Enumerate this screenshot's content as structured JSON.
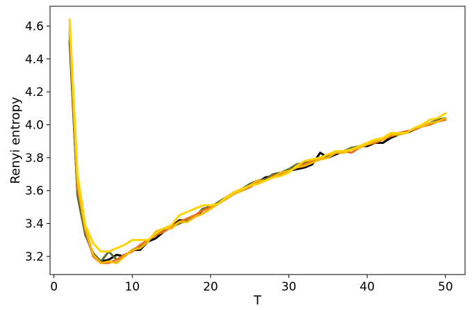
{
  "chart_data": {
    "type": "line",
    "xlabel": "T",
    "ylabel": "Renyi entropy",
    "xlim": [
      -0.5,
      52.5
    ],
    "ylim": [
      3.09,
      4.72
    ],
    "grid": false,
    "x_ticks": [
      0,
      10,
      20,
      30,
      40,
      50
    ],
    "x_tick_labels": [
      "0",
      "10",
      "20",
      "30",
      "40",
      "50"
    ],
    "y_ticks": [
      3.2,
      3.4,
      3.6,
      3.8,
      4.0,
      4.2,
      4.4,
      4.6
    ],
    "y_tick_labels": [
      "3.2",
      "3.4",
      "3.6",
      "3.8",
      "4.0",
      "4.2",
      "4.4",
      "4.6"
    ],
    "series": [
      {
        "color": "#000000",
        "x": [
          2,
          3,
          4,
          5,
          6,
          7,
          8,
          9,
          10,
          11,
          12,
          13,
          14,
          15,
          16,
          17,
          18,
          19,
          20,
          21,
          22,
          23,
          24,
          25,
          26,
          27,
          28,
          29,
          30,
          31,
          32,
          33,
          34,
          35,
          36,
          37,
          38,
          39,
          40,
          41,
          42,
          43,
          44,
          45,
          46,
          47,
          48,
          49,
          50
        ],
        "y": [
          4.51,
          3.58,
          3.34,
          3.21,
          3.17,
          3.18,
          3.21,
          3.2,
          3.24,
          3.24,
          3.29,
          3.31,
          3.35,
          3.38,
          3.42,
          3.42,
          3.44,
          3.48,
          3.51,
          3.52,
          3.56,
          3.59,
          3.6,
          3.63,
          3.65,
          3.68,
          3.69,
          3.7,
          3.72,
          3.73,
          3.74,
          3.76,
          3.83,
          3.8,
          3.82,
          3.84,
          3.85,
          3.87,
          3.87,
          3.89,
          3.89,
          3.92,
          3.94,
          3.95,
          3.97,
          3.99,
          4.01,
          4.03,
          4.04
        ]
      },
      {
        "color": "#556B2F",
        "x": [
          2,
          3,
          4,
          5,
          6,
          7,
          8,
          9,
          10,
          11,
          12,
          13,
          14,
          15,
          16,
          17,
          18,
          19,
          20,
          21,
          22,
          23,
          24,
          25,
          26,
          27,
          28,
          29,
          30,
          31,
          32,
          33,
          34,
          35,
          36,
          37,
          38,
          39,
          40,
          41,
          42,
          43,
          44,
          45,
          46,
          47,
          48,
          49,
          50
        ],
        "y": [
          4.55,
          3.57,
          3.33,
          3.22,
          3.17,
          3.23,
          3.18,
          3.2,
          3.24,
          3.26,
          3.3,
          3.33,
          3.36,
          3.38,
          3.4,
          3.42,
          3.44,
          3.49,
          3.5,
          3.53,
          3.56,
          3.59,
          3.61,
          3.64,
          3.66,
          3.67,
          3.7,
          3.71,
          3.73,
          3.76,
          3.77,
          3.78,
          3.8,
          3.81,
          3.83,
          3.84,
          3.86,
          3.87,
          3.88,
          3.9,
          3.91,
          3.93,
          3.94,
          3.96,
          3.97,
          3.99,
          4.01,
          4.03,
          4.04
        ]
      },
      {
        "color": "#E8711C",
        "x": [
          2,
          3,
          4,
          5,
          6,
          7,
          8,
          9,
          10,
          11,
          12,
          13,
          14,
          15,
          16,
          17,
          18,
          19,
          20,
          21,
          22,
          23,
          24,
          25,
          26,
          27,
          28,
          29,
          30,
          31,
          32,
          33,
          34,
          35,
          36,
          37,
          38,
          39,
          40,
          41,
          42,
          43,
          44,
          45,
          46,
          47,
          48,
          49,
          50
        ],
        "y": [
          4.58,
          3.62,
          3.36,
          3.2,
          3.16,
          3.16,
          3.18,
          3.21,
          3.23,
          3.27,
          3.3,
          3.33,
          3.35,
          3.38,
          3.41,
          3.43,
          3.45,
          3.48,
          3.5,
          3.52,
          3.55,
          3.58,
          3.6,
          3.62,
          3.65,
          3.66,
          3.69,
          3.7,
          3.72,
          3.74,
          3.76,
          3.78,
          3.8,
          3.82,
          3.83,
          3.84,
          3.83,
          3.86,
          3.88,
          3.89,
          3.91,
          3.93,
          3.95,
          3.96,
          3.97,
          3.99,
          4.0,
          4.02,
          4.03
        ]
      },
      {
        "color": "#F5B700",
        "x": [
          2,
          3,
          4,
          5,
          6,
          7,
          8,
          9,
          10,
          11,
          12,
          13,
          14,
          15,
          16,
          17,
          18,
          19,
          20,
          21,
          22,
          23,
          24,
          25,
          26,
          27,
          28,
          29,
          30,
          31,
          32,
          33,
          34,
          35,
          36,
          37,
          38,
          39,
          40,
          41,
          42,
          43,
          44,
          45,
          46,
          47,
          48,
          49,
          50
        ],
        "y": [
          4.6,
          3.65,
          3.37,
          3.21,
          3.16,
          3.17,
          3.16,
          3.2,
          3.24,
          3.25,
          3.29,
          3.35,
          3.37,
          3.37,
          3.41,
          3.41,
          3.44,
          3.46,
          3.49,
          3.52,
          3.55,
          3.58,
          3.6,
          3.63,
          3.66,
          3.66,
          3.68,
          3.71,
          3.72,
          3.74,
          3.75,
          3.77,
          3.79,
          3.8,
          3.83,
          3.83,
          3.85,
          3.86,
          3.88,
          3.9,
          3.91,
          3.94,
          3.94,
          3.95,
          3.98,
          3.99,
          4.01,
          4.02,
          4.04
        ]
      },
      {
        "color": "#FFD200",
        "x": [
          2,
          3,
          4,
          5,
          6,
          7,
          8,
          9,
          10,
          11,
          12,
          13,
          14,
          15,
          16,
          17,
          18,
          19,
          20,
          21,
          22,
          23,
          24,
          25,
          26,
          27,
          28,
          29,
          30,
          31,
          32,
          33,
          34,
          35,
          36,
          37,
          38,
          39,
          40,
          41,
          42,
          43,
          44,
          45,
          46,
          47,
          48,
          49,
          50
        ],
        "y": [
          4.64,
          3.7,
          3.39,
          3.28,
          3.23,
          3.23,
          3.25,
          3.27,
          3.3,
          3.3,
          3.3,
          3.34,
          3.37,
          3.39,
          3.45,
          3.47,
          3.49,
          3.51,
          3.51,
          3.52,
          3.56,
          3.59,
          3.61,
          3.63,
          3.64,
          3.66,
          3.68,
          3.69,
          3.71,
          3.75,
          3.78,
          3.79,
          3.8,
          3.82,
          3.84,
          3.84,
          3.85,
          3.87,
          3.89,
          3.91,
          3.92,
          3.95,
          3.95,
          3.95,
          3.98,
          4.0,
          4.03,
          4.04,
          4.07
        ]
      }
    ]
  }
}
